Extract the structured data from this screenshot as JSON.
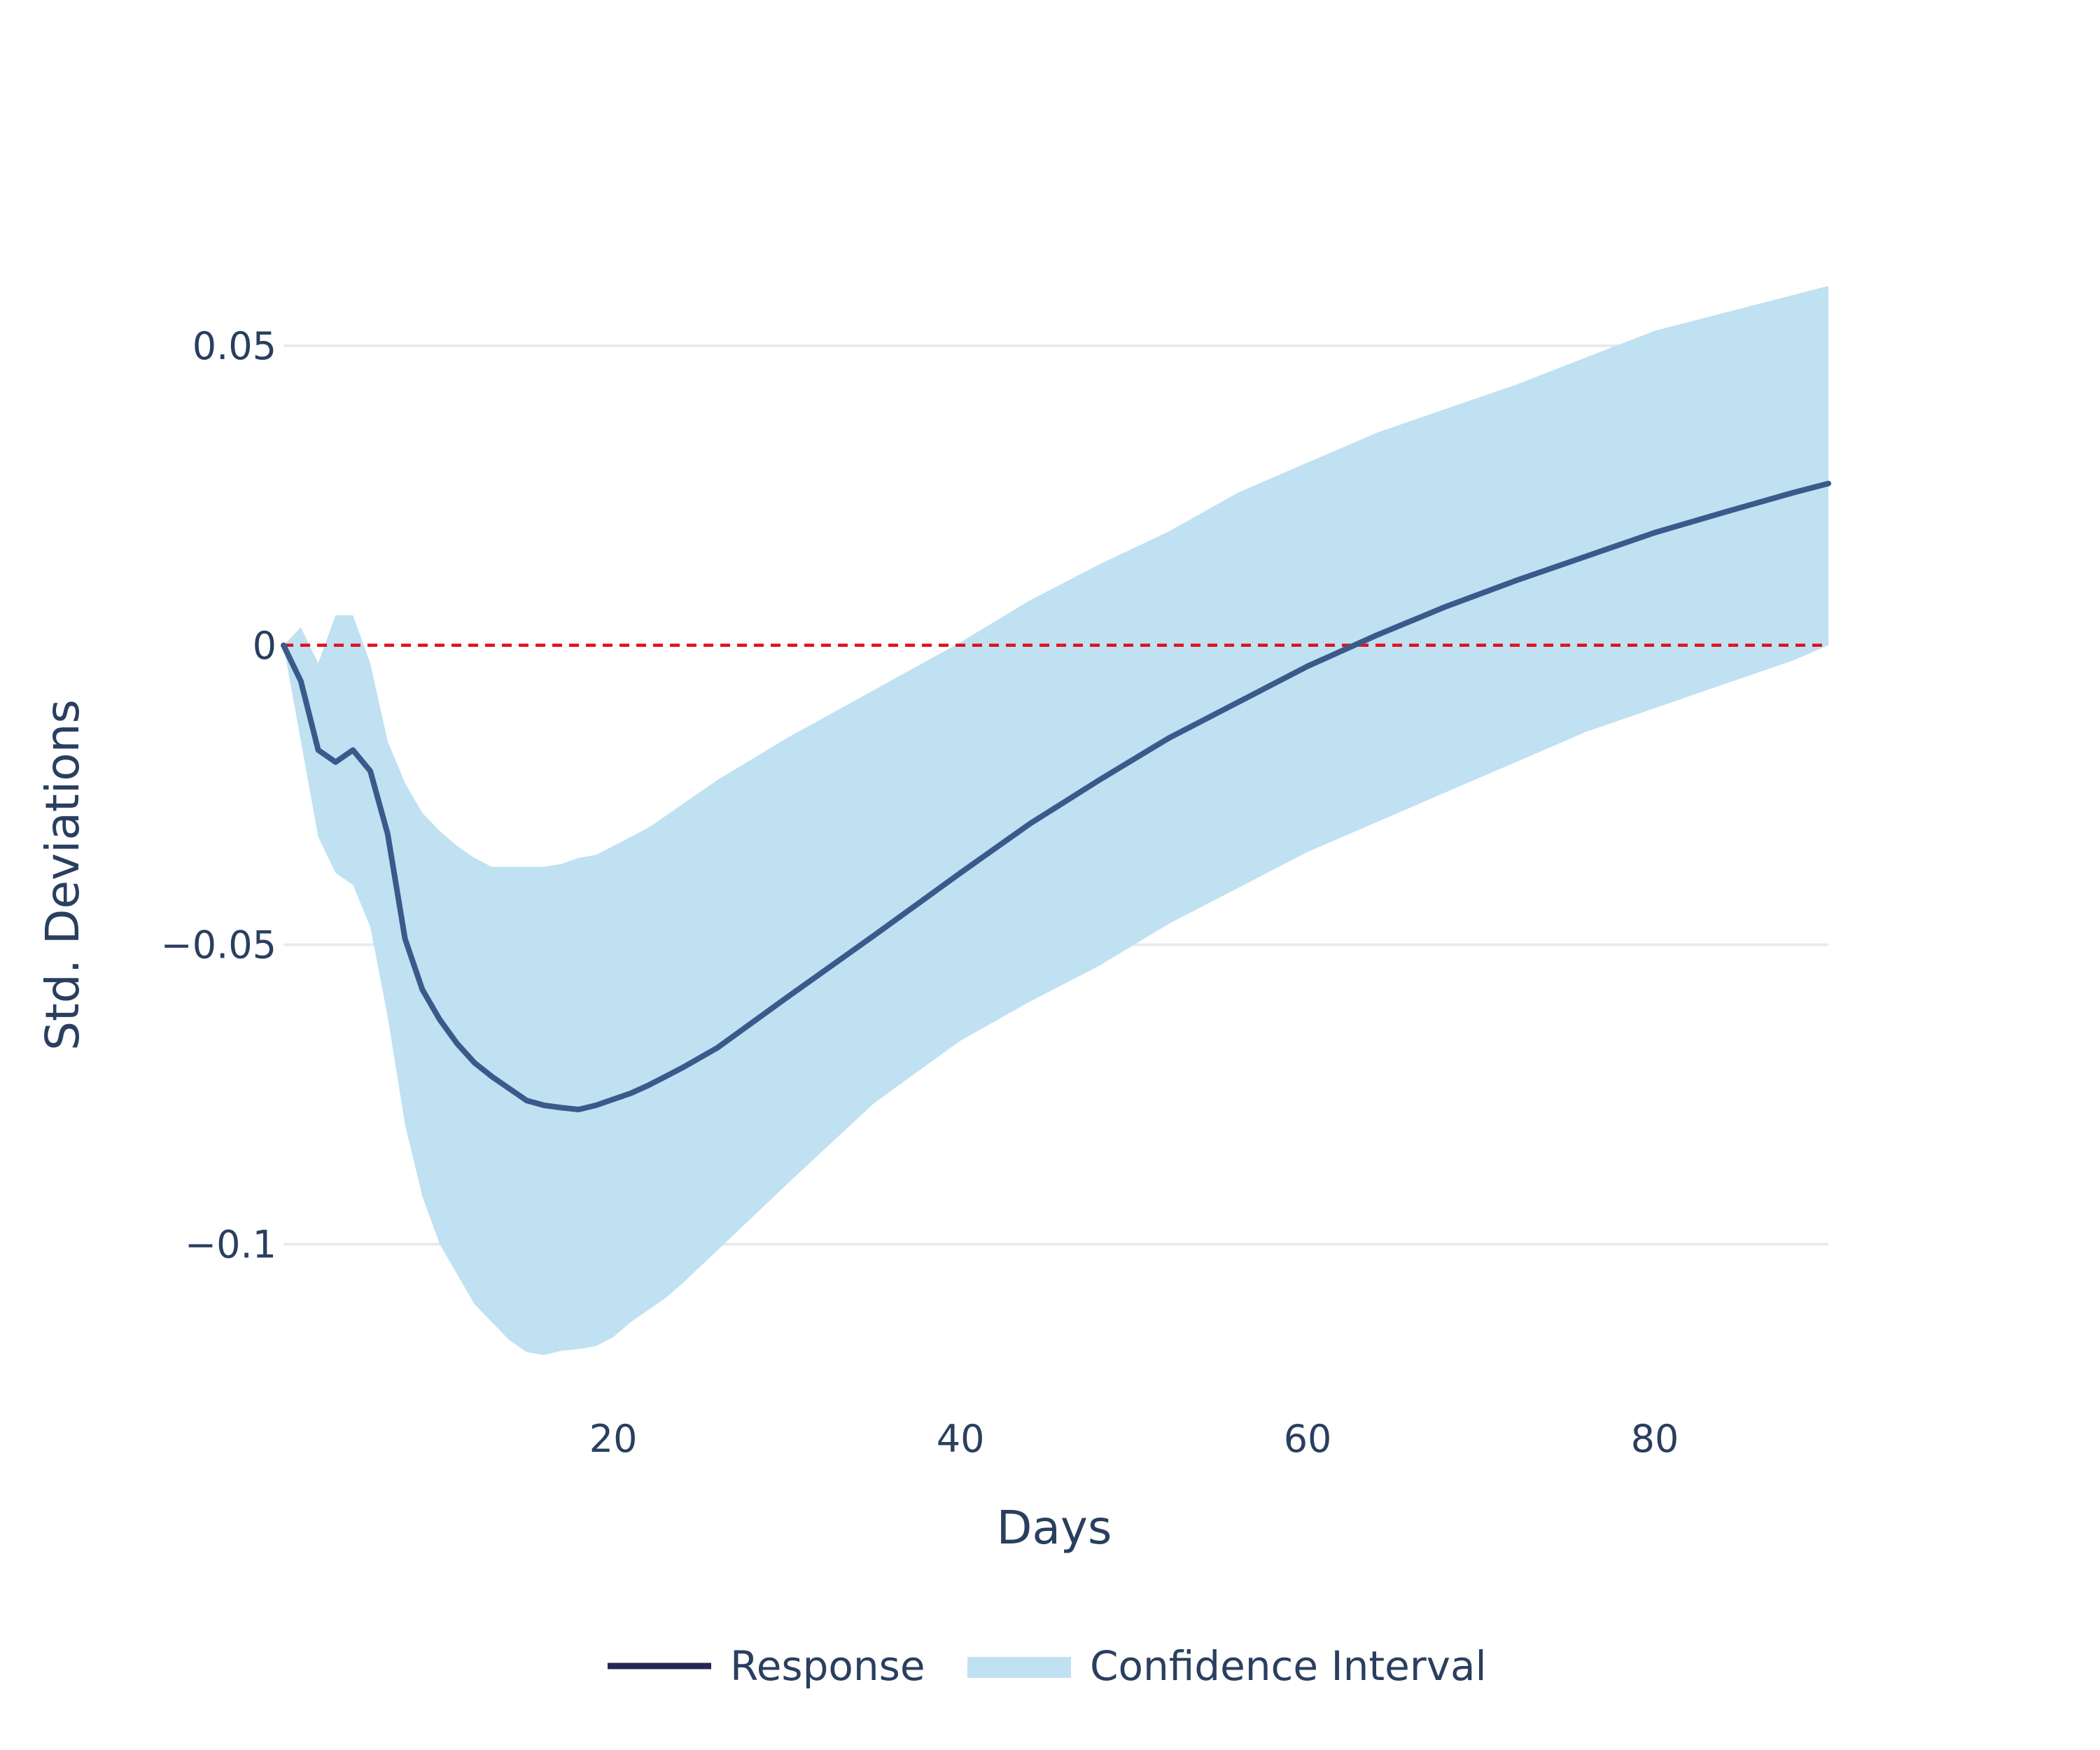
{
  "chart_data": {
    "type": "line",
    "xlabel": "Days",
    "ylabel": "Std. Deviations",
    "xlim": [
      1,
      90
    ],
    "ylim": [
      -0.126,
      0.075
    ],
    "x_ticks": [
      20,
      40,
      60,
      80
    ],
    "x_tick_labels": [
      "20",
      "40",
      "60",
      "80"
    ],
    "y_ticks": [
      0.05,
      0,
      -0.05,
      -0.1
    ],
    "y_tick_labels": [
      "0.05",
      "0",
      "−0.05",
      "−0.1"
    ],
    "grid": "horizontal",
    "reference_line": {
      "y": 0,
      "style": "dashed",
      "color": "#e0101e"
    },
    "legend_position": "bottom-center",
    "colors": {
      "response": "#3a5a8c",
      "response_legend": "#262556",
      "band": "#bfe1f2",
      "grid": "#e6ebf1",
      "text": "#2a3f5f"
    },
    "series": [
      {
        "name": "Response",
        "kind": "line",
        "x": [
          1,
          2,
          3,
          4,
          5,
          6,
          7,
          8,
          9,
          10,
          11,
          12,
          13,
          14,
          15,
          16,
          17,
          18,
          19,
          20,
          21,
          22,
          23,
          24,
          26,
          28,
          30,
          35,
          40,
          44,
          48,
          52,
          56,
          60,
          64,
          68,
          72,
          76,
          80,
          84,
          88,
          90
        ],
        "y": [
          0,
          -0.006,
          -0.0175,
          -0.0195,
          -0.0175,
          -0.021,
          -0.0315,
          -0.049,
          -0.0575,
          -0.0625,
          -0.0665,
          -0.0697,
          -0.072,
          -0.074,
          -0.076,
          -0.0768,
          -0.0772,
          -0.0775,
          -0.0768,
          -0.0758,
          -0.0748,
          -0.0735,
          -0.072,
          -0.0705,
          -0.0672,
          -0.063,
          -0.0588,
          -0.0485,
          -0.038,
          -0.0298,
          -0.0225,
          -0.0155,
          -0.0095,
          -0.0035,
          0.0017,
          0.0065,
          0.0108,
          0.0148,
          0.0188,
          0.0222,
          0.0255,
          0.027
        ]
      },
      {
        "name": "Confidence Interval",
        "kind": "band",
        "x": [
          1,
          2,
          3,
          4,
          5,
          6,
          7,
          8,
          9,
          10,
          11,
          12,
          13,
          14,
          15,
          16,
          17,
          18,
          19,
          20,
          21,
          22,
          23,
          24,
          26,
          28,
          30,
          35,
          40,
          44,
          48,
          52,
          56,
          60,
          64,
          68,
          72,
          76,
          80,
          84,
          88,
          90
        ],
        "upper": [
          0,
          0.003,
          -0.003,
          0.005,
          0.005,
          -0.003,
          -0.016,
          -0.023,
          -0.028,
          -0.031,
          -0.0335,
          -0.0355,
          -0.037,
          -0.037,
          -0.037,
          -0.037,
          -0.0365,
          -0.0355,
          -0.035,
          -0.0335,
          -0.032,
          -0.0305,
          -0.0285,
          -0.0265,
          -0.0225,
          -0.019,
          -0.0155,
          -0.0075,
          0.0005,
          0.0075,
          0.0135,
          0.019,
          0.0255,
          0.0305,
          0.0355,
          0.0395,
          0.0435,
          0.048,
          0.0525,
          0.0555,
          0.0585,
          0.06
        ]
      },
      {
        "name": "Confidence Interval",
        "kind": "band",
        "x": [
          1,
          2,
          3,
          4,
          5,
          6,
          7,
          8,
          9,
          10,
          11,
          12,
          13,
          14,
          15,
          16,
          17,
          18,
          19,
          20,
          21,
          22,
          23,
          24,
          26,
          28,
          30,
          35,
          40,
          44,
          48,
          52,
          56,
          60,
          64,
          68,
          72,
          76,
          80,
          84,
          88,
          90
        ],
        "lower": [
          0,
          -0.016,
          -0.032,
          -0.038,
          -0.04,
          -0.047,
          -0.062,
          -0.08,
          -0.092,
          -0.1,
          -0.105,
          -0.11,
          -0.113,
          -0.116,
          -0.118,
          -0.1185,
          -0.1178,
          -0.1175,
          -0.117,
          -0.1155,
          -0.113,
          -0.111,
          -0.109,
          -0.1065,
          -0.101,
          -0.0955,
          -0.09,
          -0.0765,
          -0.066,
          -0.0595,
          -0.0535,
          -0.0465,
          -0.0405,
          -0.0345,
          -0.0295,
          -0.0245,
          -0.0195,
          -0.0145,
          -0.0105,
          -0.0065,
          -0.0025,
          0.0
        ]
      }
    ],
    "legend": [
      {
        "label": "Response",
        "kind": "line"
      },
      {
        "label": "Confidence Interval",
        "kind": "band"
      }
    ]
  }
}
